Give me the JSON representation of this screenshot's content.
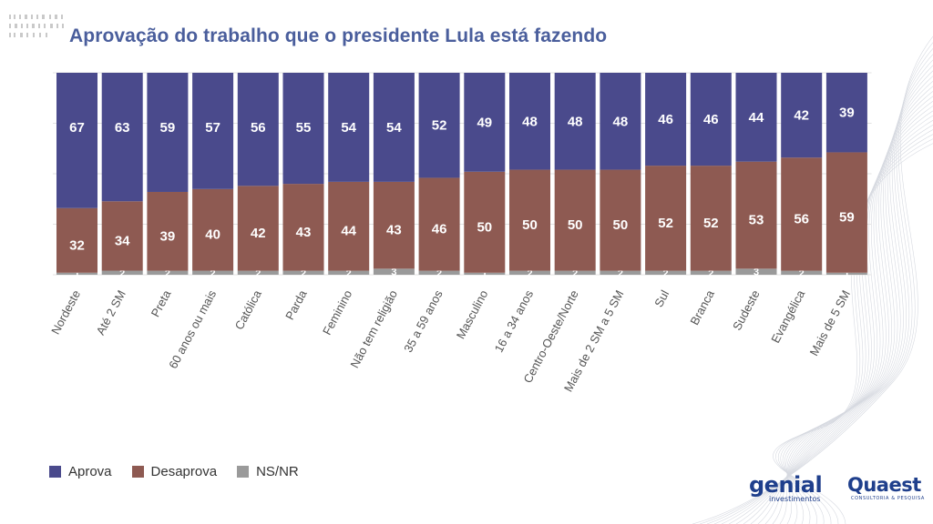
{
  "title": "Aprovação do trabalho que o presidente Lula está fazendo",
  "legend": [
    {
      "label": "Aprova",
      "color": "#4a4a8c"
    },
    {
      "label": "Desaprova",
      "color": "#8e5a52"
    },
    {
      "label": "NS/NR",
      "color": "#9a9a9a"
    }
  ],
  "logos": {
    "genial_word": "genial",
    "genial_sub": "investimentos",
    "quaest_word": "Quaest",
    "quaest_sub": "CONSULTORIA & PESQUISA"
  },
  "chart_data": {
    "type": "bar",
    "stacked": true,
    "normalized_percent": true,
    "categories": [
      "Nordeste",
      "Até 2 SM",
      "Preta",
      "60 anos ou mais",
      "Católica",
      "Parda",
      "Feminino",
      "Não tem religião",
      "35 a 59 anos",
      "Masculino",
      "16 a 34 anos",
      "Centro-Oeste/Norte",
      "Mais de 2 SM a 5 SM",
      "Sul",
      "Branca",
      "Sudeste",
      "Evangélica",
      "Mais de 5 SM"
    ],
    "series": [
      {
        "name": "NS/NR",
        "color": "#9a9a9a",
        "values": [
          1,
          2,
          2,
          2,
          2,
          2,
          2,
          3,
          2,
          1,
          2,
          2,
          2,
          2,
          2,
          3,
          2,
          1
        ]
      },
      {
        "name": "Desaprova",
        "color": "#8e5a52",
        "values": [
          32,
          34,
          39,
          40,
          42,
          43,
          44,
          43,
          46,
          50,
          50,
          50,
          50,
          52,
          52,
          53,
          56,
          59
        ]
      },
      {
        "name": "Aprova",
        "color": "#4a4a8c",
        "values": [
          67,
          63,
          59,
          57,
          56,
          55,
          54,
          54,
          52,
          49,
          48,
          48,
          48,
          46,
          46,
          44,
          42,
          39
        ]
      }
    ],
    "ylim": [
      0,
      100
    ],
    "legend_position": "bottom-left",
    "grid": true
  }
}
